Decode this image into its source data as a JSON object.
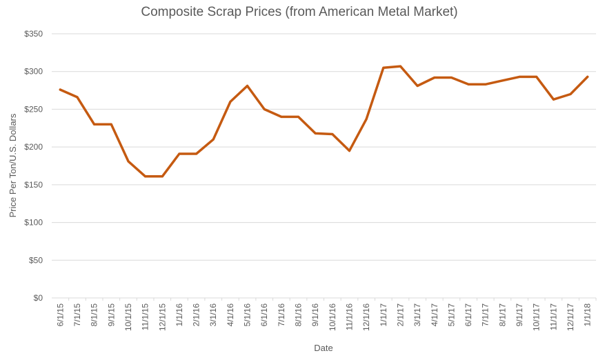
{
  "chart_data": {
    "type": "line",
    "title": "Composite Scrap Prices (from American Metal Market)",
    "xlabel": "Date",
    "ylabel": "Price Per Ton/U.S. Dollars",
    "ylim": [
      0,
      350
    ],
    "y_ticks": [
      0,
      50,
      100,
      150,
      200,
      250,
      300,
      350
    ],
    "y_tick_labels": [
      "$0",
      "$50",
      "$100",
      "$150",
      "$200",
      "$250",
      "$300",
      "$350"
    ],
    "grid": true,
    "legend": "none",
    "categories": [
      "6/1/15",
      "7/1/15",
      "8/1/15",
      "9/1/15",
      "10/1/15",
      "11/1/15",
      "12/1/15",
      "1/1/16",
      "2/1/16",
      "3/1/16",
      "4/1/16",
      "5/1/16",
      "6/1/16",
      "7/1/16",
      "8/1/16",
      "9/1/16",
      "10/1/16",
      "11/1/16",
      "12/1/16",
      "1/1/17",
      "2/1/17",
      "3/1/17",
      "4/1/17",
      "5/1/17",
      "6/1/17",
      "7/1/17",
      "8/1/17",
      "9/1/17",
      "10/1/17",
      "11/1/17",
      "12/1/17",
      "1/1/18"
    ],
    "series": [
      {
        "color": "#C55A11",
        "values": [
          276,
          266,
          230,
          230,
          181,
          161,
          161,
          191,
          191,
          210,
          260,
          281,
          250,
          240,
          240,
          218,
          217,
          195,
          237,
          305,
          307,
          281,
          292,
          292,
          283,
          283,
          288,
          293,
          293,
          263,
          270,
          293
        ]
      }
    ]
  }
}
